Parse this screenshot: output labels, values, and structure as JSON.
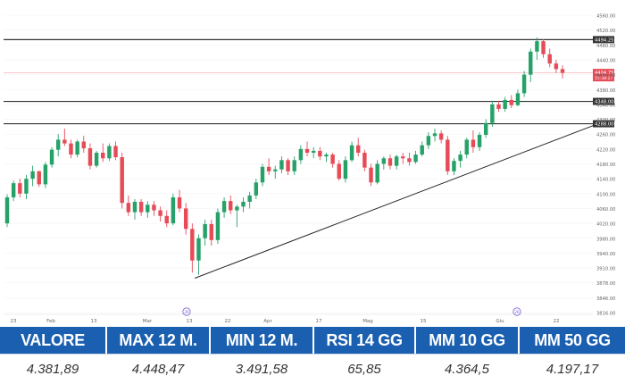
{
  "chart_data": {
    "type": "candlestick",
    "y_ticks": [
      3816,
      3846,
      3878,
      3910,
      3940,
      3980,
      4020,
      4060,
      4100,
      4140,
      4180,
      4220,
      4260,
      4300,
      4340,
      4380,
      4400,
      4440,
      4480,
      4520,
      4560
    ],
    "y_tick_labels": [
      "3816.00",
      "3846.00",
      "3878.00",
      "3910.00",
      "3940.00",
      "3980.00",
      "4020.00",
      "4060.00",
      "4100.00",
      "4140.00",
      "4180.00",
      "4220.00",
      "4260.00",
      "4300.00",
      "4340.00",
      "4380.00",
      "4400.00",
      "4440.00",
      "4480.00",
      "4520.00",
      "4560.00"
    ],
    "x_labels": [
      "23",
      "Feb",
      "13",
      "Mar",
      "13",
      "22",
      "Apr",
      "17",
      "Mag",
      "15",
      "Giu",
      "22"
    ],
    "event_markers": [
      "26",
      "26"
    ],
    "horizontal_levels": [
      {
        "value": 4494.25,
        "label": "4494.25",
        "color": "#333333"
      },
      {
        "value": 4348.0,
        "label": "4348.00",
        "color": "#333333"
      },
      {
        "value": 4288.0,
        "label": "4288.00",
        "color": "#333333"
      }
    ],
    "last_price": {
      "value": 4404.75,
      "label": "4404.75",
      "sublabel": "15:38:27",
      "color": "#e64b57"
    },
    "up_color": "#26a269",
    "down_color": "#e64b57",
    "candles": [
      [
        4020,
        4098,
        4010,
        4090
      ],
      [
        4090,
        4135,
        4080,
        4128
      ],
      [
        4128,
        4140,
        4090,
        4100
      ],
      [
        4100,
        4150,
        4085,
        4140
      ],
      [
        4140,
        4175,
        4120,
        4160
      ],
      [
        4160,
        4162,
        4118,
        4125
      ],
      [
        4125,
        4185,
        4115,
        4178
      ],
      [
        4178,
        4225,
        4170,
        4218
      ],
      [
        4218,
        4260,
        4200,
        4245
      ],
      [
        4245,
        4275,
        4228,
        4235
      ],
      [
        4235,
        4245,
        4195,
        4205
      ],
      [
        4205,
        4245,
        4198,
        4240
      ],
      [
        4240,
        4255,
        4210,
        4222
      ],
      [
        4222,
        4235,
        4165,
        4175
      ],
      [
        4175,
        4215,
        4170,
        4210
      ],
      [
        4210,
        4235,
        4185,
        4195
      ],
      [
        4195,
        4235,
        4188,
        4228
      ],
      [
        4228,
        4240,
        4190,
        4198
      ],
      [
        4198,
        4210,
        4060,
        4075
      ],
      [
        4075,
        4095,
        4040,
        4050
      ],
      [
        4050,
        4085,
        4030,
        4078
      ],
      [
        4078,
        4085,
        4040,
        4050
      ],
      [
        4050,
        4080,
        4035,
        4070
      ],
      [
        4070,
        4080,
        4040,
        4055
      ],
      [
        4055,
        4065,
        4025,
        4040
      ],
      [
        4040,
        4055,
        4010,
        4020
      ],
      [
        4020,
        4100,
        4015,
        4090
      ],
      [
        4090,
        4110,
        4050,
        4060
      ],
      [
        4060,
        4075,
        3990,
        4005
      ],
      [
        4005,
        4020,
        3900,
        3925
      ],
      [
        3925,
        3990,
        3895,
        3980
      ],
      [
        3980,
        4030,
        3960,
        4018
      ],
      [
        4018,
        4030,
        3960,
        3975
      ],
      [
        3975,
        4060,
        3965,
        4050
      ],
      [
        4050,
        4090,
        4035,
        4080
      ],
      [
        4080,
        4095,
        4045,
        4055
      ],
      [
        4055,
        4070,
        4010,
        4065
      ],
      [
        4065,
        4090,
        4050,
        4078
      ],
      [
        4078,
        4105,
        4060,
        4095
      ],
      [
        4095,
        4140,
        4085,
        4130
      ],
      [
        4130,
        4180,
        4120,
        4172
      ],
      [
        4172,
        4195,
        4150,
        4160
      ],
      [
        4160,
        4175,
        4140,
        4165
      ],
      [
        4165,
        4200,
        4155,
        4190
      ],
      [
        4190,
        4195,
        4150,
        4160
      ],
      [
        4160,
        4200,
        4150,
        4190
      ],
      [
        4190,
        4230,
        4180,
        4220
      ],
      [
        4220,
        4240,
        4200,
        4210
      ],
      [
        4210,
        4225,
        4195,
        4215
      ],
      [
        4215,
        4225,
        4190,
        4200
      ],
      [
        4200,
        4210,
        4185,
        4205
      ],
      [
        4205,
        4210,
        4170,
        4180
      ],
      [
        4180,
        4190,
        4135,
        4140
      ],
      [
        4140,
        4200,
        4130,
        4190
      ],
      [
        4190,
        4240,
        4185,
        4230
      ],
      [
        4230,
        4250,
        4200,
        4210
      ],
      [
        4210,
        4218,
        4160,
        4170
      ],
      [
        4170,
        4180,
        4120,
        4130
      ],
      [
        4130,
        4190,
        4125,
        4180
      ],
      [
        4180,
        4200,
        4165,
        4195
      ],
      [
        4195,
        4205,
        4165,
        4175
      ],
      [
        4175,
        4205,
        4165,
        4200
      ],
      [
        4200,
        4210,
        4180,
        4195
      ],
      [
        4195,
        4210,
        4175,
        4185
      ],
      [
        4185,
        4215,
        4180,
        4205
      ],
      [
        4205,
        4240,
        4200,
        4230
      ],
      [
        4230,
        4265,
        4220,
        4255
      ],
      [
        4255,
        4275,
        4240,
        4262
      ],
      [
        4262,
        4270,
        4235,
        4245
      ],
      [
        4245,
        4255,
        4150,
        4160
      ],
      [
        4160,
        4195,
        4150,
        4188
      ],
      [
        4188,
        4215,
        4170,
        4205
      ],
      [
        4205,
        4250,
        4195,
        4245
      ],
      [
        4245,
        4270,
        4210,
        4225
      ],
      [
        4225,
        4265,
        4215,
        4258
      ],
      [
        4258,
        4300,
        4250,
        4290
      ],
      [
        4290,
        4350,
        4280,
        4340
      ],
      [
        4340,
        4350,
        4320,
        4328
      ],
      [
        4328,
        4360,
        4320,
        4352
      ],
      [
        4352,
        4365,
        4330,
        4338
      ],
      [
        4338,
        4380,
        4335,
        4370
      ],
      [
        4370,
        4410,
        4360,
        4400
      ],
      [
        4400,
        4470,
        4390,
        4462
      ],
      [
        4462,
        4500,
        4440,
        4490
      ],
      [
        4490,
        4495,
        4445,
        4455
      ],
      [
        4455,
        4470,
        4420,
        4430
      ],
      [
        4430,
        4440,
        4405,
        4415
      ],
      [
        4415,
        4425,
        4395,
        4405
      ]
    ],
    "trendline": [
      [
        3888,
        0
      ],
      [
        4285,
        89
      ]
    ]
  },
  "table": {
    "headers": [
      "VALORE",
      "MAX 12 M.",
      "MIN 12 M.",
      "RSI 14 GG",
      "MM 10 GG",
      "MM 50 GG"
    ],
    "values": [
      "4.381,89",
      "4.448,47",
      "3.491,58",
      "65,85",
      "4.364,5",
      "4.197,17"
    ]
  }
}
